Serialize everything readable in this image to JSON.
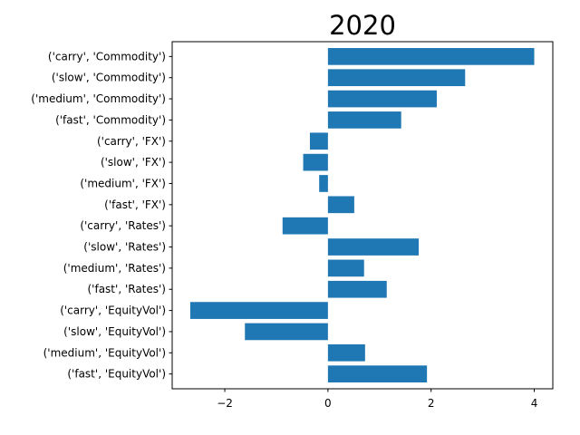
{
  "chart_data": {
    "type": "bar",
    "orientation": "horizontal",
    "title": "2020",
    "xlabel": "",
    "ylabel": "",
    "categories": [
      "('carry', 'Commodity')",
      "('slow', 'Commodity')",
      "('medium', 'Commodity')",
      "('fast', 'Commodity')",
      "('carry', 'FX')",
      "('slow', 'FX')",
      "('medium', 'FX')",
      "('fast', 'FX')",
      "('carry', 'Rates')",
      "('slow', 'Rates')",
      "('medium', 'Rates')",
      "('fast', 'Rates')",
      "('carry', 'EquityVol')",
      "('slow', 'EquityVol')",
      "('medium', 'EquityVol')",
      "('fast', 'EquityVol')"
    ],
    "values": [
      4.0,
      2.66,
      2.11,
      1.42,
      -0.35,
      -0.48,
      -0.17,
      0.51,
      -0.88,
      1.76,
      0.7,
      1.14,
      -2.67,
      -1.61,
      0.72,
      1.92
    ],
    "xlim": [
      -3.02,
      4.36
    ],
    "xticks": [
      -2,
      0,
      2,
      4
    ],
    "xtick_labels": [
      "−2",
      "0",
      "2",
      "4"
    ],
    "bar_color": "#1f77b4",
    "grid": false,
    "legend": "none"
  }
}
